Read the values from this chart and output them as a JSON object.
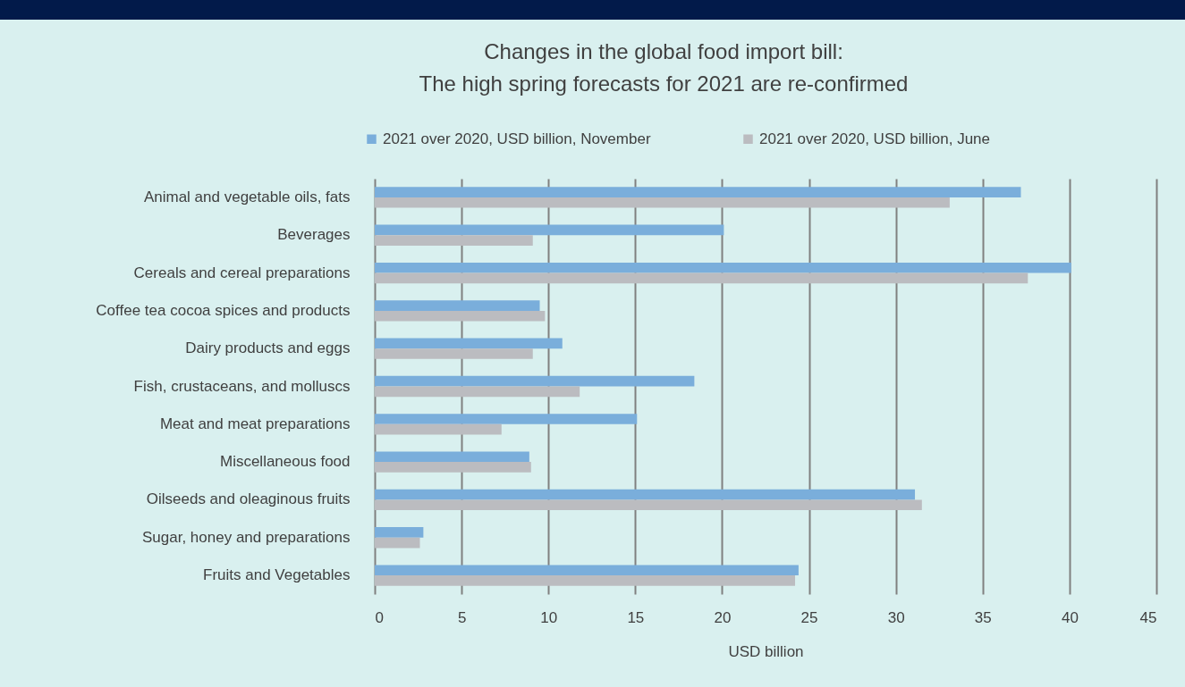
{
  "chart_data": {
    "type": "bar",
    "orientation": "horizontal",
    "title": "Changes in the global food import bill:\nThe high spring forecasts for 2021 are re-confirmed",
    "xlabel": "USD billion",
    "categories": [
      "Animal and vegetable oils, fats",
      "Beverages",
      "Cereals and cereal preparations",
      "Coffee tea cocoa spices and products",
      "Dairy products and eggs",
      "Fish, crustaceans, and molluscs",
      "Meat and meat preparations",
      "Miscellaneous food",
      "Oilseeds and oleaginous fruits",
      "Sugar, honey and preparations",
      "Fruits and Vegetables"
    ],
    "series": [
      {
        "name": "2021 over 2020, USD billion, November",
        "color": "#7aaedb",
        "values": [
          37.2,
          20.1,
          40.1,
          9.5,
          10.8,
          18.4,
          15.1,
          8.9,
          31.1,
          2.8,
          24.4
        ]
      },
      {
        "name": "2021 over 2020, USD billion, June",
        "color": "#bbbcc0",
        "values": [
          33.1,
          9.1,
          37.6,
          9.8,
          9.1,
          11.8,
          7.3,
          9.0,
          31.5,
          2.6,
          24.2
        ]
      }
    ],
    "xlim": [
      0,
      45
    ],
    "xticks": [
      0,
      5,
      10,
      15,
      20,
      25,
      30,
      35,
      40,
      45
    ],
    "grid": "x",
    "legend": "top"
  }
}
